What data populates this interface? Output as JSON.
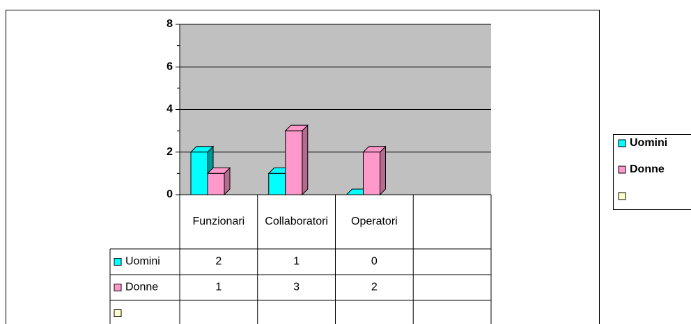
{
  "chart_data": {
    "type": "bar3d",
    "categories": [
      "Funzionari",
      "Collaboratori",
      "Operatori",
      null
    ],
    "series": [
      {
        "name": "Uomini",
        "color": "#00ffff",
        "side_color": "#009999",
        "values": [
          2,
          1,
          0,
          null
        ]
      },
      {
        "name": "Donne",
        "color": "#ff99cc",
        "side_color": "#b36b8f",
        "values": [
          1,
          3,
          2,
          null
        ]
      },
      {
        "name": null,
        "color": "#ffffcc",
        "side_color": "#b3b38f",
        "values": [
          null,
          null,
          null,
          null
        ]
      }
    ],
    "ylim": [
      0,
      8
    ],
    "yticks": [
      0,
      2,
      4,
      6,
      8
    ],
    "grid": true,
    "legend": "right",
    "data_table": true
  }
}
